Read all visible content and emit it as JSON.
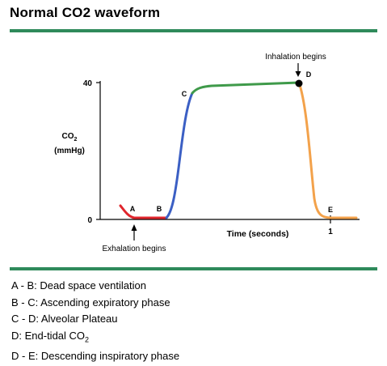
{
  "header": {
    "title": "Normal CO2 waveform"
  },
  "colors": {
    "accent_rule": "#2f8a5b",
    "segment_dead_space": "#e0262d",
    "segment_ascending": "#3b5fc4",
    "segment_plateau": "#3f9a4a",
    "segment_descending": "#f3a24b"
  },
  "chart": {
    "ylabel_line1": "CO",
    "ylabel_sub": "2",
    "ylabel_line2": "(mmHg)",
    "y_tick_40": "40",
    "y_tick_0": "0",
    "x_axis_label": "Time (seconds)",
    "x_tick_1": "1",
    "annotation_inhalation": "Inhalation begins",
    "annotation_exhalation": "Exhalation begins",
    "points": {
      "a": "A",
      "b": "B",
      "c": "C",
      "d": "D",
      "e": "E"
    }
  },
  "legend": [
    {
      "text": "A - B: Dead space ventilation"
    },
    {
      "text": "B - C: Ascending expiratory phase"
    },
    {
      "text": "C - D: Alveolar Plateau"
    },
    {
      "text": "D: End-tidal CO",
      "sub": "2"
    },
    {
      "text": "D - E: Descending inspiratory phase"
    }
  ]
}
